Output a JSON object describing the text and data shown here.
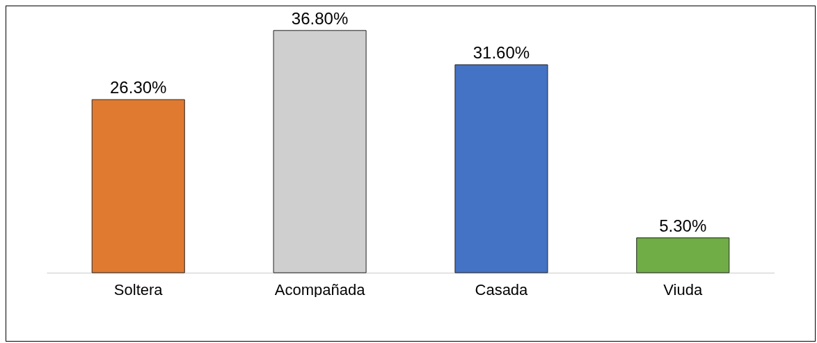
{
  "chart_data": {
    "type": "bar",
    "categories": [
      "Soltera",
      "Acompañada",
      "Casada",
      "Viuda"
    ],
    "values": [
      26.3,
      36.8,
      31.6,
      5.3
    ],
    "colors": [
      "#e07a30",
      "#cfcfcf",
      "#4472c4",
      "#70ad47"
    ],
    "value_labels": [
      "26.30%",
      "36.80%",
      "31.60%",
      "5.30%"
    ]
  }
}
